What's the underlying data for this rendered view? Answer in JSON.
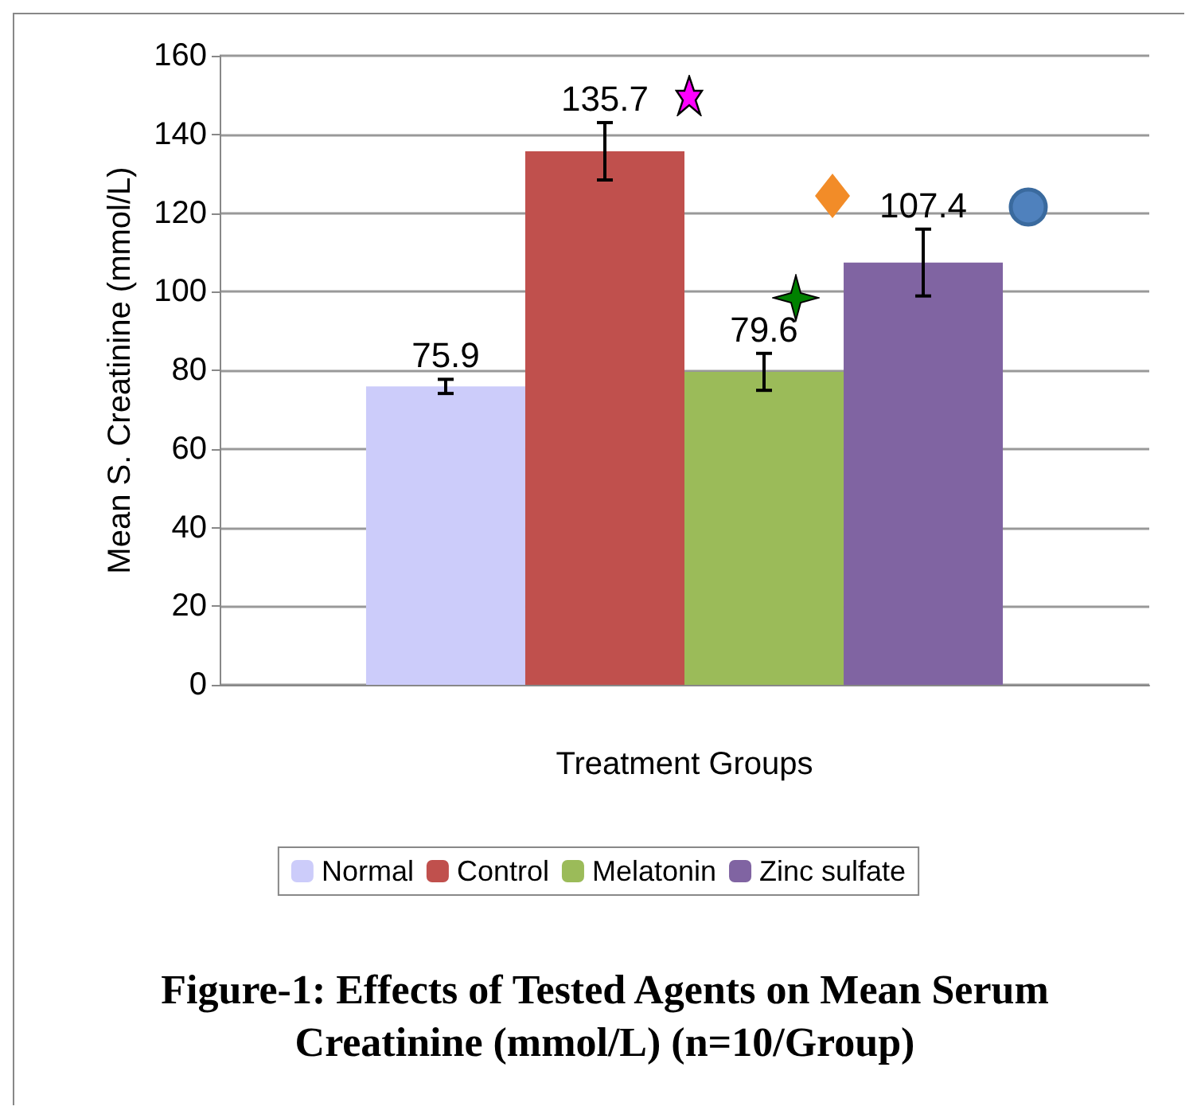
{
  "chart_data": {
    "type": "bar",
    "title": "Figure-1: Effects of Tested Agents on Mean Serum Creatinine (mmol/L) (n=10/Group)",
    "xlabel": "Treatment Groups",
    "ylabel": "Mean S. Creatinine (mmol/L)",
    "categories": [
      null
    ],
    "series": [
      {
        "name": "Normal",
        "color": "#ccccfa",
        "values": [
          75.9
        ],
        "errors": [
          1.8
        ]
      },
      {
        "name": "Control",
        "color": "#c0504d",
        "values": [
          135.7
        ],
        "errors": [
          7.3
        ]
      },
      {
        "name": "Melatonin",
        "color": "#9bbb59",
        "values": [
          79.6
        ],
        "errors": [
          4.7
        ]
      },
      {
        "name": "Zinc sulfate",
        "color": "#8064a2",
        "values": [
          107.4
        ],
        "errors": [
          8.5
        ]
      }
    ],
    "ylim": [
      0,
      160
    ],
    "yticks": [
      0,
      20,
      40,
      60,
      80,
      100,
      120,
      140,
      160
    ],
    "grid": "y",
    "legend": "bottom",
    "data_labels": true
  }
}
